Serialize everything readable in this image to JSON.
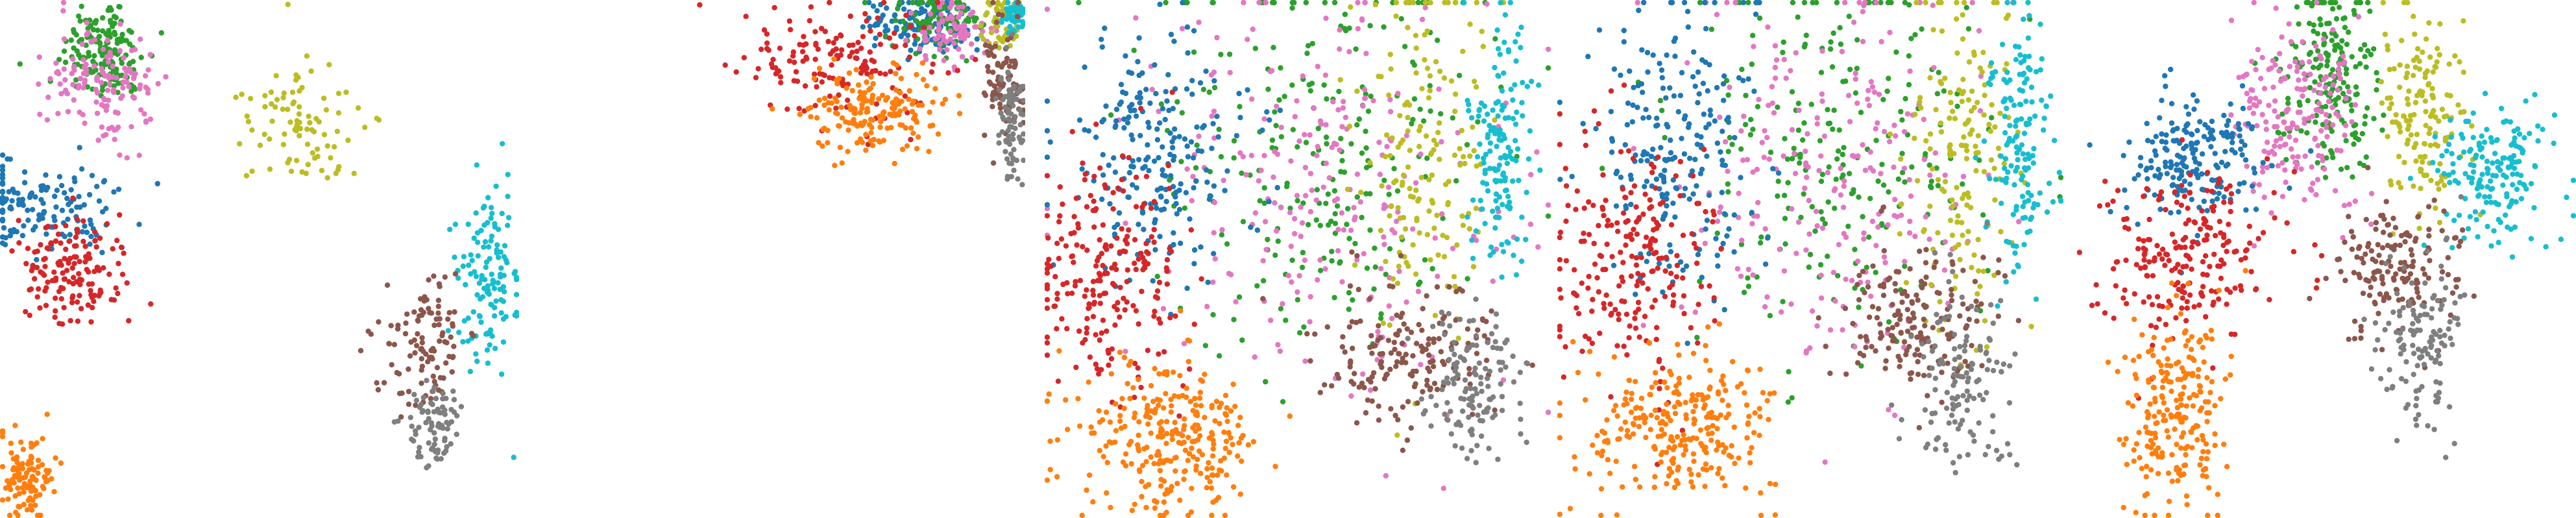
{
  "figure": {
    "description_panels": 5
  },
  "chart_data": [
    {
      "type": "scatter",
      "legend": "none",
      "axes": "hidden",
      "grid": false,
      "clusters": [
        {
          "color": "#2ca02c",
          "cx": 0.2,
          "cy": 0.1,
          "sx": 0.04,
          "sy": 0.05,
          "n": 160
        },
        {
          "color": "#e377c2",
          "cx": 0.2,
          "cy": 0.16,
          "sx": 0.05,
          "sy": 0.06,
          "n": 140
        },
        {
          "color": "#1f77b4",
          "cx": 0.08,
          "cy": 0.4,
          "sx": 0.08,
          "sy": 0.04,
          "n": 140
        },
        {
          "color": "#d62728",
          "cx": 0.14,
          "cy": 0.52,
          "sx": 0.05,
          "sy": 0.05,
          "n": 150
        },
        {
          "color": "#bcbd22",
          "cx": 0.58,
          "cy": 0.24,
          "sx": 0.05,
          "sy": 0.06,
          "n": 90
        },
        {
          "color": "#ff7f0e",
          "cx": 0.05,
          "cy": 0.92,
          "sx": 0.03,
          "sy": 0.04,
          "n": 110
        },
        {
          "color": "#17becf",
          "cx": 0.94,
          "cy": 0.54,
          "sx": 0.03,
          "sy": 0.1,
          "n": 130
        },
        {
          "color": "#8c564b",
          "cx": 0.82,
          "cy": 0.66,
          "sx": 0.04,
          "sy": 0.07,
          "n": 110
        },
        {
          "color": "#7f7f7f",
          "cx": 0.84,
          "cy": 0.82,
          "sx": 0.03,
          "sy": 0.04,
          "n": 80
        }
      ]
    },
    {
      "type": "scatter",
      "legend": "none",
      "axes": "hidden",
      "grid": false,
      "clusters": [
        {
          "color": "#1f77b4",
          "cx": 0.7,
          "cy": 0.05,
          "sx": 0.08,
          "sy": 0.03,
          "n": 140
        },
        {
          "color": "#2ca02c",
          "cx": 0.75,
          "cy": 0.04,
          "sx": 0.07,
          "sy": 0.03,
          "n": 90
        },
        {
          "color": "#e377c2",
          "cx": 0.78,
          "cy": 0.06,
          "sx": 0.06,
          "sy": 0.03,
          "n": 80
        },
        {
          "color": "#d62728",
          "cx": 0.45,
          "cy": 0.12,
          "sx": 0.14,
          "sy": 0.06,
          "n": 160
        },
        {
          "color": "#ff7f0e",
          "cx": 0.55,
          "cy": 0.22,
          "sx": 0.1,
          "sy": 0.04,
          "n": 170
        },
        {
          "color": "#bcbd22",
          "cx": 0.93,
          "cy": 0.04,
          "sx": 0.03,
          "sy": 0.03,
          "n": 60
        },
        {
          "color": "#17becf",
          "cx": 0.97,
          "cy": 0.03,
          "sx": 0.02,
          "sy": 0.02,
          "n": 50
        },
        {
          "color": "#8c564b",
          "cx": 0.94,
          "cy": 0.15,
          "sx": 0.03,
          "sy": 0.06,
          "n": 90
        },
        {
          "color": "#7f7f7f",
          "cx": 0.96,
          "cy": 0.24,
          "sx": 0.02,
          "sy": 0.06,
          "n": 80
        }
      ]
    },
    {
      "type": "scatter",
      "legend": "none",
      "axes": "hidden",
      "grid": false,
      "clusters": [
        {
          "color": "#2ca02c",
          "cx": 0.55,
          "cy": 0.3,
          "sx": 0.18,
          "sy": 0.2,
          "n": 240
        },
        {
          "color": "#e377c2",
          "cx": 0.55,
          "cy": 0.36,
          "sx": 0.18,
          "sy": 0.2,
          "n": 240
        },
        {
          "color": "#1f77b4",
          "cx": 0.22,
          "cy": 0.3,
          "sx": 0.1,
          "sy": 0.12,
          "n": 220
        },
        {
          "color": "#d62728",
          "cx": 0.12,
          "cy": 0.52,
          "sx": 0.08,
          "sy": 0.1,
          "n": 220
        },
        {
          "color": "#ff7f0e",
          "cx": 0.25,
          "cy": 0.84,
          "sx": 0.09,
          "sy": 0.07,
          "n": 280
        },
        {
          "color": "#bcbd22",
          "cx": 0.75,
          "cy": 0.3,
          "sx": 0.06,
          "sy": 0.18,
          "n": 160
        },
        {
          "color": "#17becf",
          "cx": 0.9,
          "cy": 0.3,
          "sx": 0.03,
          "sy": 0.12,
          "n": 150
        },
        {
          "color": "#8c564b",
          "cx": 0.72,
          "cy": 0.68,
          "sx": 0.08,
          "sy": 0.07,
          "n": 170
        },
        {
          "color": "#7f7f7f",
          "cx": 0.85,
          "cy": 0.74,
          "sx": 0.05,
          "sy": 0.07,
          "n": 130
        }
      ]
    },
    {
      "type": "scatter",
      "legend": "none",
      "axes": "hidden",
      "grid": false,
      "clusters": [
        {
          "color": "#2ca02c",
          "cx": 0.55,
          "cy": 0.28,
          "sx": 0.15,
          "sy": 0.18,
          "n": 230
        },
        {
          "color": "#e377c2",
          "cx": 0.55,
          "cy": 0.34,
          "sx": 0.15,
          "sy": 0.18,
          "n": 230
        },
        {
          "color": "#1f77b4",
          "cx": 0.24,
          "cy": 0.3,
          "sx": 0.08,
          "sy": 0.14,
          "n": 220
        },
        {
          "color": "#d62728",
          "cx": 0.14,
          "cy": 0.5,
          "sx": 0.08,
          "sy": 0.12,
          "n": 220
        },
        {
          "color": "#ff7f0e",
          "cx": 0.25,
          "cy": 0.82,
          "sx": 0.09,
          "sy": 0.08,
          "n": 270
        },
        {
          "color": "#bcbd22",
          "cx": 0.8,
          "cy": 0.3,
          "sx": 0.05,
          "sy": 0.18,
          "n": 160
        },
        {
          "color": "#17becf",
          "cx": 0.91,
          "cy": 0.3,
          "sx": 0.03,
          "sy": 0.12,
          "n": 150
        },
        {
          "color": "#8c564b",
          "cx": 0.7,
          "cy": 0.62,
          "sx": 0.08,
          "sy": 0.07,
          "n": 170
        },
        {
          "color": "#7f7f7f",
          "cx": 0.8,
          "cy": 0.74,
          "sx": 0.05,
          "sy": 0.09,
          "n": 130
        }
      ]
    },
    {
      "type": "scatter",
      "legend": "none",
      "axes": "hidden",
      "grid": false,
      "clusters": [
        {
          "color": "#2ca02c",
          "cx": 0.52,
          "cy": 0.14,
          "sx": 0.05,
          "sy": 0.1,
          "n": 200
        },
        {
          "color": "#e377c2",
          "cx": 0.46,
          "cy": 0.22,
          "sx": 0.06,
          "sy": 0.1,
          "n": 190
        },
        {
          "color": "#1f77b4",
          "cx": 0.26,
          "cy": 0.3,
          "sx": 0.07,
          "sy": 0.06,
          "n": 200
        },
        {
          "color": "#d62728",
          "cx": 0.24,
          "cy": 0.5,
          "sx": 0.08,
          "sy": 0.08,
          "n": 220
        },
        {
          "color": "#ff7f0e",
          "cx": 0.22,
          "cy": 0.78,
          "sx": 0.05,
          "sy": 0.09,
          "n": 230
        },
        {
          "color": "#bcbd22",
          "cx": 0.7,
          "cy": 0.22,
          "sx": 0.04,
          "sy": 0.1,
          "n": 150
        },
        {
          "color": "#17becf",
          "cx": 0.84,
          "cy": 0.34,
          "sx": 0.05,
          "sy": 0.07,
          "n": 170
        },
        {
          "color": "#8c564b",
          "cx": 0.65,
          "cy": 0.52,
          "sx": 0.06,
          "sy": 0.06,
          "n": 160
        },
        {
          "color": "#7f7f7f",
          "cx": 0.7,
          "cy": 0.66,
          "sx": 0.04,
          "sy": 0.09,
          "n": 130
        }
      ]
    }
  ]
}
